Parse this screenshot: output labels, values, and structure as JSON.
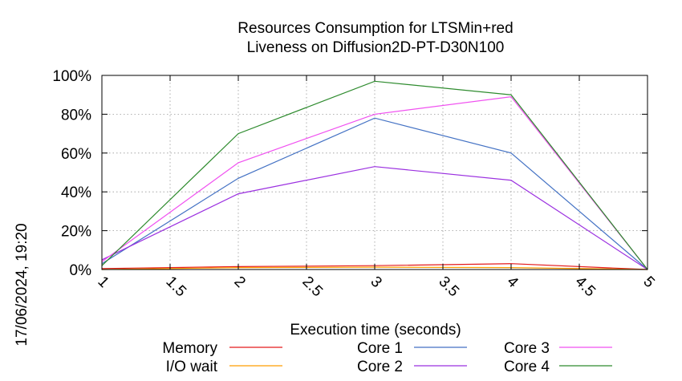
{
  "chart_data": {
    "type": "line",
    "title_lines": [
      "Resources Consumption for LTSMin+red",
      "Liveness on Diffusion2D-PT-D30N100"
    ],
    "xlabel": "Execution time (seconds)",
    "ylabel": "",
    "xlim": [
      1,
      5
    ],
    "ylim": [
      0,
      100
    ],
    "x_ticks": [
      "1",
      "1.5",
      "2",
      "2.5",
      "3",
      "3.5",
      "4",
      "4.5",
      "5"
    ],
    "y_ticks": [
      "0%",
      "20%",
      "40%",
      "60%",
      "80%",
      "100%"
    ],
    "grid": true,
    "legend_position": "bottom",
    "side_label": "17/06/2024, 19:20",
    "series": [
      {
        "name": "Memory",
        "color": "#e41a1c",
        "x": [
          1,
          2,
          3,
          4,
          5
        ],
        "y": [
          0.5,
          1.5,
          2,
          3,
          0
        ]
      },
      {
        "name": "I/O wait",
        "color": "#ff9e00",
        "x": [
          1,
          2,
          3,
          4,
          5
        ],
        "y": [
          0,
          1,
          1.2,
          1,
          0
        ]
      },
      {
        "name": "Core 1",
        "color": "#4472c4",
        "x": [
          1,
          2,
          3,
          4,
          5
        ],
        "y": [
          3,
          47,
          78,
          60,
          0
        ]
      },
      {
        "name": "Core 2",
        "color": "#9b30e0",
        "x": [
          1,
          2,
          3,
          4,
          5
        ],
        "y": [
          5,
          39,
          53,
          46,
          0
        ]
      },
      {
        "name": "Core 3",
        "color": "#f050f0",
        "x": [
          1,
          2,
          3,
          4,
          5
        ],
        "y": [
          4,
          55,
          80,
          89,
          0
        ]
      },
      {
        "name": "Core 4",
        "color": "#2e8b2e",
        "x": [
          1,
          2,
          3,
          4,
          5
        ],
        "y": [
          2,
          70,
          97,
          90,
          0
        ]
      }
    ]
  }
}
